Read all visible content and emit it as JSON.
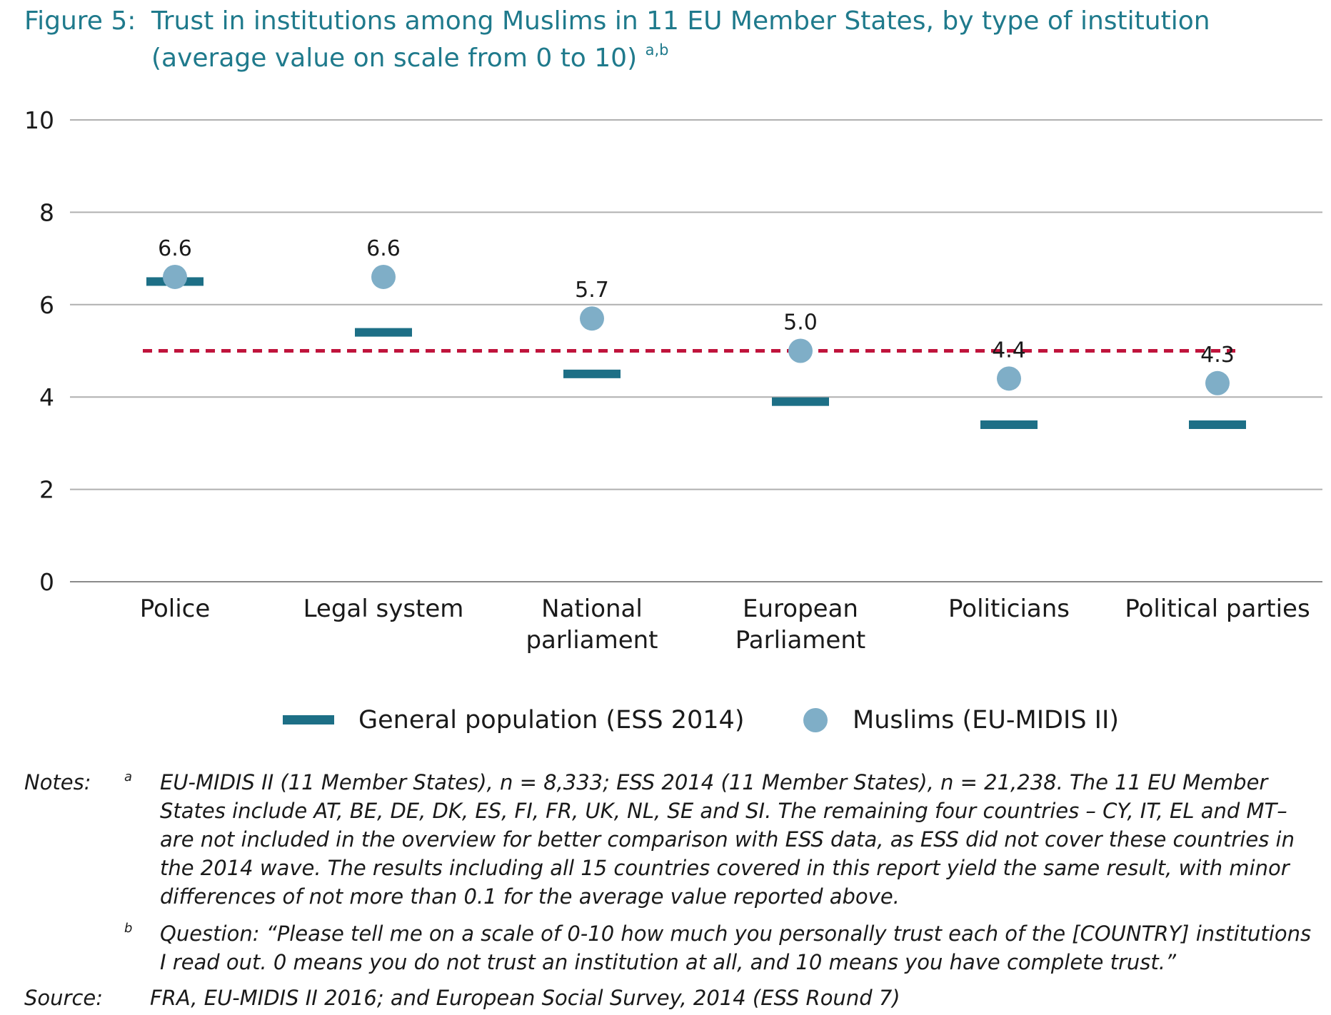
{
  "figure": {
    "label": "Figure 5:",
    "title": "Trust in institutions among Muslims in 11 EU Member States, by type of institution (average value on scale from 0 to 10)",
    "title_superscript": "a,b"
  },
  "chart_data": {
    "type": "scatter",
    "title": "Trust in institutions among Muslims in 11 EU Member States, by type of institution (average value on scale from 0 to 10)",
    "ylim": [
      0,
      10
    ],
    "yticks": [
      0,
      2,
      4,
      6,
      8,
      10
    ],
    "ytick_labels": [
      "0",
      "2",
      "4",
      "6",
      "8",
      "10"
    ],
    "categories": [
      "Police",
      "Legal system",
      "National parliament",
      "European Parliament",
      "Politicians",
      "Political parties"
    ],
    "category_lines": [
      [
        "Police"
      ],
      [
        "Legal system"
      ],
      [
        "National",
        "parliament"
      ],
      [
        "European",
        "Parliament"
      ],
      [
        "Politicians"
      ],
      [
        "Political parties"
      ]
    ],
    "series": [
      {
        "name": "General population (ESS 2014)",
        "marker": "dash",
        "color": "#1d6f86",
        "values": [
          6.5,
          5.4,
          4.5,
          3.9,
          3.4,
          3.4
        ]
      },
      {
        "name": "Muslims (EU-MIDIS II)",
        "marker": "circle",
        "color": "#7faec7",
        "values": [
          6.6,
          6.6,
          5.7,
          5.0,
          4.4,
          4.3
        ],
        "data_labels": [
          "6.6",
          "6.6",
          "5.7",
          "5.0",
          "4.4",
          "4.3"
        ]
      }
    ],
    "reference_line": {
      "value": 5.0,
      "style": "dashed",
      "color": "#c0143c"
    },
    "grid": true,
    "legend": {
      "position": "bottom"
    }
  },
  "notes": {
    "label": "Notes:",
    "a_mark": "a",
    "a_text": "EU-MIDIS II (11 Member States), n = 8,333; ESS 2014 (11 Member States), n = 21,238. The 11 EU Member States include AT, BE, DE, DK, ES, FI, FR, UK, NL, SE and SI. The remaining four countries – CY, IT, EL and MT– are not included in the overview for better comparison with ESS data, as ESS did not cover these countries in the 2014 wave. The results including all 15 countries covered in this report yield the same result, with minor differences of not more than 0.1 for the average value reported above.",
    "b_mark": "b",
    "b_text": "Question: “Please tell me on a scale of 0-10 how much you personally trust each of the [COUNTRY] institutions I read out. 0 means you do not trust an institution at all, and 10 means you have complete trust.”"
  },
  "source": {
    "label": "Source:",
    "text": "FRA, EU-MIDIS II 2016; and European Social Survey, 2014 (ESS Round 7)"
  }
}
